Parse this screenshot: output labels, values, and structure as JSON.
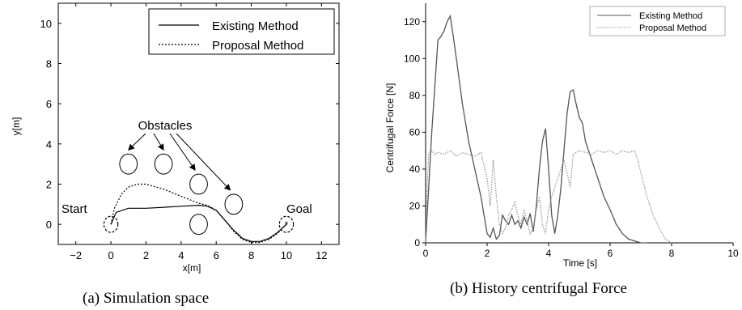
{
  "chart_data": [
    {
      "type": "line",
      "xlabel": "x[m]",
      "ylabel": "y[m]",
      "xlim": [
        -3,
        13
      ],
      "ylim": [
        -1,
        11
      ],
      "xticks": [
        -2,
        0,
        2,
        4,
        6,
        8,
        10,
        12
      ],
      "yticks": [
        0,
        2,
        4,
        6,
        8,
        10
      ],
      "grid": false,
      "legend_position": "top-right",
      "series": [
        {
          "name": "Existing Method",
          "style": "solid",
          "x": [
            0,
            0.3,
            1,
            2,
            3,
            4,
            5,
            5.5,
            6,
            6.5,
            7,
            7.5,
            8,
            8.5,
            9,
            9.5,
            10
          ],
          "y": [
            0,
            0.6,
            0.8,
            0.8,
            0.85,
            0.9,
            0.95,
            0.9,
            0.7,
            0.2,
            -0.3,
            -0.7,
            -0.85,
            -0.85,
            -0.7,
            -0.4,
            0
          ]
        },
        {
          "name": "Proposal Method",
          "style": "dotted",
          "x": [
            0,
            0.2,
            0.6,
            1,
            1.5,
            2,
            3,
            4,
            5,
            5.5,
            6,
            6.5,
            7,
            7.5,
            8,
            8.5,
            9,
            9.5,
            10
          ],
          "y": [
            0,
            0.8,
            1.5,
            1.85,
            2.0,
            2.0,
            1.75,
            1.4,
            1.05,
            0.95,
            0.7,
            0.2,
            -0.35,
            -0.75,
            -0.9,
            -0.9,
            -0.75,
            -0.45,
            0
          ]
        }
      ],
      "obstacles": [
        {
          "x": 1,
          "y": 3
        },
        {
          "x": 3,
          "y": 3
        },
        {
          "x": 5,
          "y": 2
        },
        {
          "x": 7,
          "y": 1
        },
        {
          "x": 5,
          "y": 0
        }
      ],
      "obstacle_radius": 0.5,
      "start": {
        "x": 0,
        "y": 0
      },
      "goal": {
        "x": 10,
        "y": 0
      },
      "annotations": {
        "obstacles_label": "Obstacles",
        "start_label": "Start",
        "goal_label": "Goal"
      },
      "caption": "(a)   Simulation space"
    },
    {
      "type": "line",
      "xlabel": "Time [s]",
      "ylabel": "Centrifugal Force [N]",
      "xlim": [
        0,
        10
      ],
      "ylim": [
        0,
        130
      ],
      "xticks": [
        0,
        2,
        4,
        6,
        8,
        10
      ],
      "yticks": [
        0,
        20,
        40,
        60,
        80,
        100,
        120
      ],
      "grid": false,
      "legend_position": "top-right",
      "series": [
        {
          "name": "Existing Method",
          "style": "solid",
          "x": [
            0,
            0.2,
            0.4,
            0.5,
            0.6,
            0.7,
            0.8,
            0.9,
            1.0,
            1.2,
            1.4,
            1.6,
            1.8,
            2.0,
            2.1,
            2.2,
            2.3,
            2.4,
            2.5,
            2.6,
            2.7,
            2.8,
            2.9,
            3.0,
            3.1,
            3.2,
            3.3,
            3.4,
            3.5,
            3.6,
            3.7,
            3.8,
            3.9,
            4.0,
            4.1,
            4.2,
            4.3,
            4.4,
            4.5,
            4.6,
            4.7,
            4.8,
            4.9,
            5.0,
            5.1,
            5.2,
            5.4,
            5.6,
            5.8,
            6.0,
            6.2,
            6.4,
            6.6,
            6.8,
            7.0,
            7.2
          ],
          "y": [
            0,
            60,
            110,
            112,
            115,
            120,
            123,
            112,
            100,
            75,
            55,
            40,
            25,
            5,
            3,
            8,
            2,
            4,
            15,
            12,
            10,
            15,
            10,
            12,
            8,
            14,
            10,
            16,
            6,
            20,
            40,
            55,
            62,
            40,
            15,
            5,
            15,
            30,
            50,
            70,
            82,
            83,
            75,
            68,
            65,
            55,
            45,
            35,
            25,
            18,
            10,
            5,
            2,
            1,
            0,
            0
          ]
        },
        {
          "name": "Proposal Method",
          "style": "dotted",
          "x": [
            0,
            0.05,
            0.1,
            0.2,
            0.3,
            0.4,
            0.6,
            0.8,
            1.0,
            1.2,
            1.4,
            1.6,
            1.8,
            2.0,
            2.1,
            2.2,
            2.3,
            2.4,
            2.5,
            2.6,
            2.7,
            2.8,
            2.9,
            3.0,
            3.1,
            3.2,
            3.3,
            3.4,
            3.5,
            3.6,
            3.7,
            3.8,
            3.9,
            4.0,
            4.1,
            4.2,
            4.3,
            4.4,
            4.5,
            4.6,
            4.7,
            4.8,
            5.0,
            5.2,
            5.4,
            5.6,
            5.8,
            6.0,
            6.2,
            6.4,
            6.6,
            6.8,
            6.9,
            7.0,
            7.2,
            7.4,
            7.6,
            7.8,
            8.0
          ],
          "y": [
            0,
            30,
            48,
            50,
            48,
            49,
            48,
            50,
            47,
            49,
            48,
            47,
            49,
            35,
            20,
            45,
            25,
            10,
            5,
            8,
            15,
            18,
            22,
            15,
            10,
            18,
            12,
            5,
            8,
            18,
            25,
            10,
            5,
            18,
            25,
            30,
            35,
            40,
            45,
            38,
            30,
            48,
            50,
            49,
            48,
            50,
            49,
            50,
            48,
            50,
            49,
            50,
            45,
            38,
            25,
            15,
            8,
            2,
            0
          ]
        }
      ],
      "caption": "(b)   History centrifugal Force"
    }
  ],
  "colors": {
    "axes": "#000000",
    "line_a": "#000000",
    "line_b": "#555555",
    "dotted_b": "#999999"
  }
}
